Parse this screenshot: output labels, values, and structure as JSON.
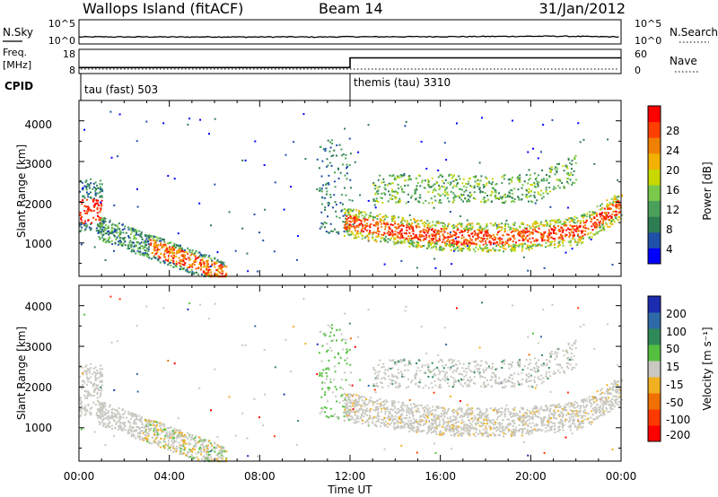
{
  "header": {
    "station": "Wallops Island (fitACF)",
    "beam": "Beam 14",
    "date": "31/Jan/2012"
  },
  "noise_panel": {
    "left_label": "N.Sky",
    "right_label": "N.Search",
    "left_ticks": [
      "10^5",
      "10^0"
    ],
    "right_ticks": [
      "10^5",
      "10^0"
    ]
  },
  "freq_panel": {
    "left_label_1": "Freq.",
    "left_label_2": "[MHz]",
    "right_label": "Nave",
    "left_ticks": [
      "18",
      "8"
    ],
    "right_ticks": [
      "60",
      "0"
    ]
  },
  "cpid": {
    "label": "CPID",
    "modes": [
      {
        "name": "tau (fast) 503",
        "start_hour": 0
      },
      {
        "name": "themis (tau) 3310",
        "start_hour": 12
      }
    ]
  },
  "x_axis": {
    "label": "Time UT",
    "ticks": [
      "00:00",
      "04:00",
      "08:00",
      "12:00",
      "16:00",
      "20:00",
      "00:00"
    ]
  },
  "power_panel": {
    "ylabel": "Slant Range [km]",
    "yticks": [
      "4000",
      "3000",
      "2000",
      "1000"
    ],
    "colorbar_label": "Power [dB]",
    "colorbar_ticks": [
      "28",
      "24",
      "20",
      "16",
      "12",
      "8",
      "4"
    ],
    "colors": [
      "#0000ff",
      "#1f4fa8",
      "#2e7d52",
      "#4aa05a",
      "#7ac94a",
      "#c8d800",
      "#f2b000",
      "#f08000",
      "#ff4000",
      "#ff0000"
    ]
  },
  "velocity_panel": {
    "ylabel": "Slant Range [km]",
    "yticks": [
      "4000",
      "3000",
      "2000",
      "1000"
    ],
    "colorbar_label": "Velocity [m s⁻¹]",
    "colorbar_ticks": [
      "200",
      "100",
      "50",
      "15",
      "-15",
      "-50",
      "-100",
      "-200"
    ],
    "colors": [
      "#1c2cb0",
      "#2e6aa8",
      "#2f8a5a",
      "#55c040",
      "#c8c8c0",
      "#f0b020",
      "#f07000",
      "#ff3a00",
      "#ff0000"
    ]
  },
  "chart_data": [
    {
      "type": "line",
      "title": "N.Sky / N.Search",
      "x": [
        0,
        1,
        2,
        3,
        4,
        5,
        6,
        7,
        8,
        9,
        10,
        11,
        12,
        13,
        14,
        15,
        16,
        17,
        18,
        19,
        20,
        21,
        22,
        23,
        24
      ],
      "series": [
        {
          "name": "N.Sky",
          "values": [
            10,
            11,
            10,
            11,
            10,
            10,
            11,
            10,
            10,
            11,
            10,
            10,
            12,
            11,
            12,
            12,
            13,
            13,
            14,
            15,
            16,
            17,
            15,
            12,
            11
          ]
        }
      ],
      "ylim": [
        1,
        100000
      ],
      "scale": "log"
    },
    {
      "type": "line",
      "title": "Freq. / Nave",
      "x": [
        0,
        12,
        12,
        24
      ],
      "series": [
        {
          "name": "Freq.",
          "values": [
            10.5,
            10.5,
            14.5,
            14.5
          ]
        },
        {
          "name": "Nave",
          "values": [
            4,
            4,
            4,
            4
          ]
        }
      ],
      "ylim": [
        8,
        18
      ]
    },
    {
      "type": "heatmap",
      "title": "Power [dB]",
      "x_range_hours": [
        0,
        24
      ],
      "y_range_km": [
        180,
        4500
      ],
      "features": [
        {
          "name": "early echo",
          "start_hour": 0,
          "end_hour": 1,
          "range_km": [
            1200,
            2600
          ],
          "power_db": 24
        },
        {
          "name": "descending band",
          "start_hour": 1,
          "end_hour": 6.5,
          "range_km_start": 1400,
          "range_km_end": 200,
          "power_db": 22
        },
        {
          "name": "main band",
          "start_hour": 12,
          "end_hour": 24,
          "range_km": [
            900,
            1900
          ],
          "power_db": 26
        },
        {
          "name": "upper band",
          "start_hour": 13,
          "end_hour": 22,
          "range_km": [
            2000,
            2600
          ],
          "power_db": 10
        }
      ]
    },
    {
      "type": "heatmap",
      "title": "Velocity",
      "x_range_hours": [
        0,
        24
      ],
      "y_range_km": [
        180,
        4500
      ],
      "features": [
        {
          "name": "descending band",
          "start_hour": 0.5,
          "end_hour": 6.5,
          "velocity_ms": 0
        },
        {
          "name": "afternoon bands",
          "start_hour": 12,
          "end_hour": 24,
          "velocity_ms": 0
        }
      ]
    }
  ]
}
